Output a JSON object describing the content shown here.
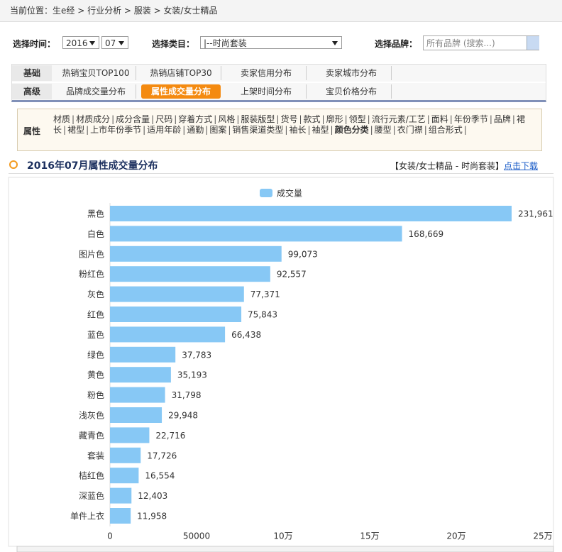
{
  "breadcrumb": "当前位置：生e经 > 行业分析 > 服装 > 女装/女士精品",
  "filters": {
    "time_label": "选择时间：",
    "year": "2016",
    "month": "07",
    "category_label": "选择类目：",
    "category": "|--时尚套装",
    "brand_label": "选择品牌：",
    "brand_placeholder": "所有品牌 (搜索...)"
  },
  "tabs": [
    {
      "group": "基础",
      "items": [
        "热销宝贝TOP100",
        "热销店铺TOP30",
        "卖家信用分布",
        "卖家城市分布"
      ]
    },
    {
      "group": "高级",
      "items": [
        "品牌成交量分布",
        "属性成交量分布",
        "上架时间分布",
        "宝贝价格分布"
      ]
    }
  ],
  "attributes": {
    "label": "属性",
    "items": [
      "材质",
      "材质成分",
      "成分含量",
      "尺码",
      "穿着方式",
      "风格",
      "服装版型",
      "货号",
      "款式",
      "廓形",
      "领型",
      "流行元素/工艺",
      "面料",
      "年份季节",
      "品牌",
      "裙长",
      "裙型",
      "上市年份季节",
      "适用年龄",
      "通勤",
      "图案",
      "销售渠道类型",
      "袖长",
      "袖型",
      "颜色分类",
      "腰型",
      "衣门襟",
      "组合形式"
    ]
  },
  "section": {
    "title": "2016年07月属性成交量分布",
    "scope": "【女装/女士精品 - 时尚套装】",
    "download": "点击下载"
  },
  "chart_data": {
    "type": "bar",
    "orientation": "horizontal",
    "categories": [
      "黑色",
      "白色",
      "图片色",
      "粉红色",
      "灰色",
      "红色",
      "蓝色",
      "绿色",
      "黄色",
      "粉色",
      "浅灰色",
      "藏青色",
      "套装",
      "桔红色",
      "深蓝色",
      "单件上衣"
    ],
    "series": [
      {
        "name": "成交量",
        "color": "#87c8f5",
        "values": [
          231961,
          168669,
          99073,
          92557,
          77371,
          75843,
          66438,
          37783,
          35193,
          31798,
          29948,
          22716,
          17726,
          16554,
          12403,
          11958
        ],
        "value_labels": [
          "231,961",
          "168,669",
          "99,073",
          "92,557",
          "77,371",
          "75,843",
          "66,438",
          "37,783",
          "35,193",
          "31,798",
          "29,948",
          "22,716",
          "17,726",
          "16,554",
          "12,403",
          "11,958"
        ]
      }
    ],
    "xlim": [
      0,
      250000
    ],
    "xticks": [
      0,
      50000,
      {
        "value": 100000,
        "label": "10万"
      },
      {
        "value": 150000,
        "label": "15万"
      },
      {
        "value": 200000,
        "label": "20万"
      },
      {
        "value": 250000,
        "label": "25万"
      }
    ],
    "grid": false
  }
}
